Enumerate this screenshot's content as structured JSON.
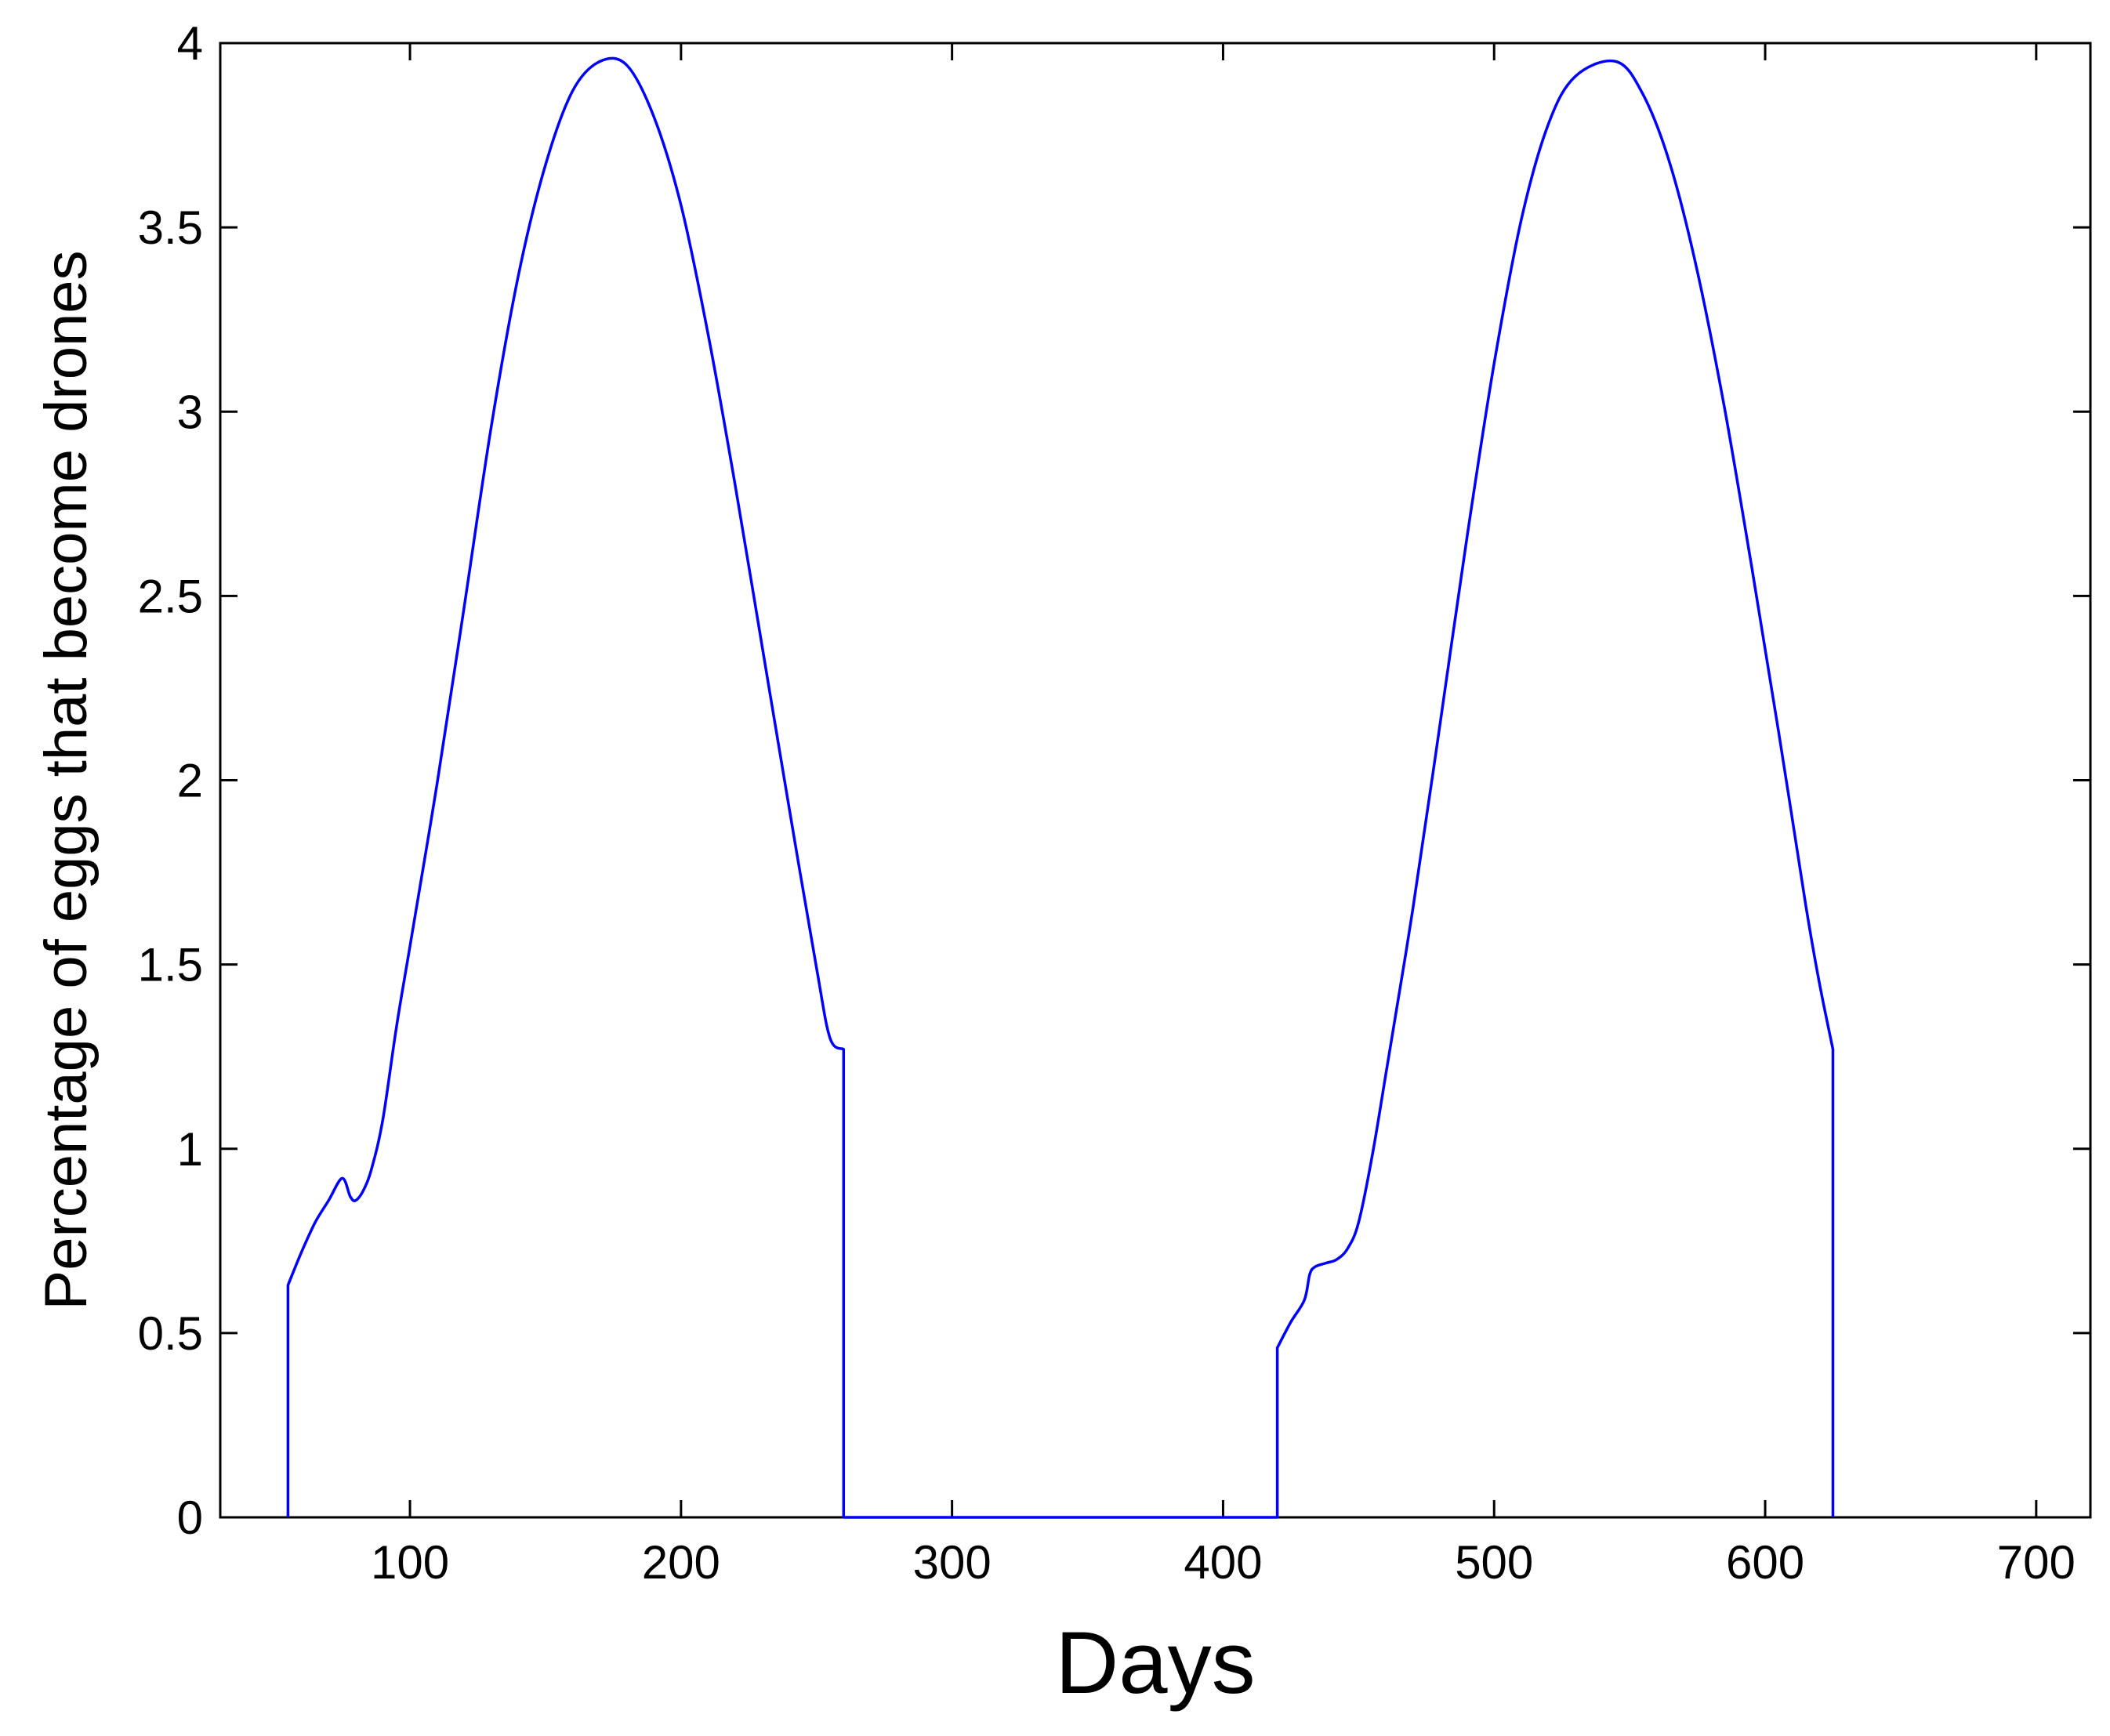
{
  "chart_data": {
    "type": "line",
    "title": "",
    "xlabel": "Days",
    "ylabel": "Percentage of eggs that become drones",
    "xlim": [
      30,
      720
    ],
    "ylim": [
      0,
      4
    ],
    "xticks": [
      100,
      200,
      300,
      400,
      500,
      600,
      700
    ],
    "yticks": [
      0,
      0.5,
      1,
      1.5,
      2,
      2.5,
      3,
      3.5,
      4
    ],
    "xtick_labels": [
      "100",
      "200",
      "300",
      "400",
      "500",
      "600",
      "700"
    ],
    "ytick_labels": [
      "0",
      "0.5",
      "1",
      "1.5",
      "2",
      "2.5",
      "3",
      "3.5",
      "4"
    ],
    "grid": false,
    "series": [
      {
        "color": "#0000ff",
        "x": [
          55,
          55,
          60,
          65,
          70,
          75,
          78,
          80,
          83,
          86,
          90,
          95,
          100,
          110,
          120,
          130,
          140,
          150,
          160,
          170,
          180,
          190,
          200,
          210,
          220,
          230,
          240,
          250,
          255,
          260,
          260,
          420,
          420,
          425,
          430,
          432,
          434,
          438,
          442,
          446,
          450,
          455,
          460,
          470,
          480,
          490,
          500,
          510,
          520,
          530,
          545,
          555,
          565,
          575,
          585,
          595,
          605,
          615,
          620,
          625,
          625
        ],
        "y": [
          0,
          0.63,
          0.72,
          0.8,
          0.86,
          0.92,
          0.87,
          0.86,
          0.89,
          0.95,
          1.08,
          1.33,
          1.55,
          1.99,
          2.47,
          2.96,
          3.37,
          3.67,
          3.87,
          3.95,
          3.94,
          3.8,
          3.56,
          3.21,
          2.8,
          2.36,
          1.92,
          1.49,
          1.3,
          1.27,
          0,
          0,
          0.46,
          0.53,
          0.59,
          0.66,
          0.68,
          0.69,
          0.7,
          0.73,
          0.8,
          0.98,
          1.2,
          1.65,
          2.15,
          2.66,
          3.13,
          3.52,
          3.78,
          3.91,
          3.95,
          3.86,
          3.67,
          3.38,
          3.01,
          2.58,
          2.13,
          1.66,
          1.45,
          1.27,
          0
        ]
      }
    ]
  }
}
